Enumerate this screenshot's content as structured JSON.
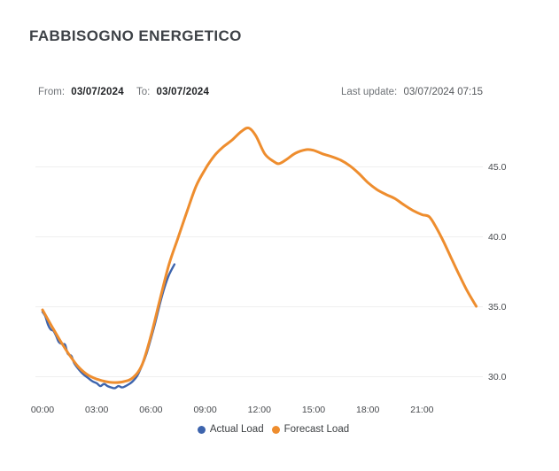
{
  "title": "FABBISOGNO ENERGETICO",
  "header": {
    "from_label": "From:",
    "from_value": "03/07/2024",
    "to_label": "To:",
    "to_value": "03/07/2024",
    "last_update_label": "Last update:",
    "last_update_value": "03/07/2024 07:15"
  },
  "colors": {
    "grid_line": "#efefef",
    "title_text": "#3e4247",
    "muted_text": "#6e7276",
    "value_text": "#222427",
    "axis_text": "#46494d"
  },
  "chart_data": {
    "type": "line",
    "title": "FABBISOGNO ENERGETICO",
    "xlabel": "",
    "ylabel": "",
    "x_axis": {
      "unit": "time of day (hours)",
      "tick_hours": [
        0,
        3,
        6,
        9,
        12,
        15,
        18,
        21
      ],
      "tick_labels": [
        "00:00",
        "03:00",
        "06:00",
        "09:00",
        "12:00",
        "15:00",
        "18:00",
        "21:00"
      ],
      "range_hours": [
        0,
        24
      ]
    },
    "y_axis": {
      "side": "right",
      "tick_values": [
        45.0,
        40.0,
        35.0,
        30.0
      ],
      "tick_labels": [
        "45.0",
        "40.0",
        "35.0",
        "30.0"
      ],
      "ylim": [
        28.7,
        48.4
      ],
      "grid": true
    },
    "legend_position": "bottom-center",
    "series": [
      {
        "name": "Actual Load",
        "color": "#3d64ad",
        "points": [
          [
            0.0,
            34.6
          ],
          [
            0.15,
            34.3
          ],
          [
            0.3,
            33.7
          ],
          [
            0.45,
            33.35
          ],
          [
            0.6,
            33.25
          ],
          [
            0.75,
            32.9
          ],
          [
            0.9,
            32.45
          ],
          [
            1.1,
            32.3
          ],
          [
            1.25,
            32.25
          ],
          [
            1.4,
            31.6
          ],
          [
            1.6,
            31.45
          ],
          [
            1.75,
            30.95
          ],
          [
            2.0,
            30.5
          ],
          [
            2.25,
            30.15
          ],
          [
            2.5,
            29.9
          ],
          [
            2.75,
            29.65
          ],
          [
            3.0,
            29.5
          ],
          [
            3.2,
            29.3
          ],
          [
            3.4,
            29.45
          ],
          [
            3.6,
            29.3
          ],
          [
            3.8,
            29.2
          ],
          [
            4.0,
            29.15
          ],
          [
            4.2,
            29.3
          ],
          [
            4.4,
            29.2
          ],
          [
            4.6,
            29.3
          ],
          [
            4.8,
            29.45
          ],
          [
            5.0,
            29.65
          ],
          [
            5.25,
            30.05
          ],
          [
            5.5,
            30.75
          ],
          [
            5.75,
            31.6
          ],
          [
            6.0,
            32.7
          ],
          [
            6.25,
            33.9
          ],
          [
            6.5,
            35.2
          ],
          [
            6.75,
            36.35
          ],
          [
            7.0,
            37.25
          ],
          [
            7.3,
            38.0
          ]
        ]
      },
      {
        "name": "Forecast Load",
        "color": "#ee8d2e",
        "points": [
          [
            0.0,
            34.75
          ],
          [
            0.5,
            33.6
          ],
          [
            1.0,
            32.5
          ],
          [
            1.5,
            31.5
          ],
          [
            2.0,
            30.65
          ],
          [
            2.5,
            30.1
          ],
          [
            3.0,
            29.8
          ],
          [
            3.5,
            29.62
          ],
          [
            4.0,
            29.55
          ],
          [
            4.5,
            29.62
          ],
          [
            5.0,
            29.9
          ],
          [
            5.5,
            30.8
          ],
          [
            6.0,
            32.9
          ],
          [
            6.5,
            35.5
          ],
          [
            7.0,
            38.0
          ],
          [
            7.5,
            39.9
          ],
          [
            8.0,
            41.8
          ],
          [
            8.5,
            43.6
          ],
          [
            9.0,
            44.8
          ],
          [
            9.3,
            45.4
          ],
          [
            9.6,
            45.9
          ],
          [
            10.0,
            46.4
          ],
          [
            10.5,
            46.9
          ],
          [
            11.0,
            47.5
          ],
          [
            11.4,
            47.75
          ],
          [
            11.8,
            47.2
          ],
          [
            12.3,
            45.9
          ],
          [
            12.8,
            45.35
          ],
          [
            13.1,
            45.2
          ],
          [
            13.5,
            45.5
          ],
          [
            14.0,
            45.95
          ],
          [
            14.6,
            46.2
          ],
          [
            15.0,
            46.15
          ],
          [
            15.5,
            45.9
          ],
          [
            16.0,
            45.7
          ],
          [
            16.5,
            45.45
          ],
          [
            17.0,
            45.05
          ],
          [
            17.5,
            44.5
          ],
          [
            18.0,
            43.85
          ],
          [
            18.5,
            43.35
          ],
          [
            19.0,
            43.0
          ],
          [
            19.5,
            42.7
          ],
          [
            20.0,
            42.25
          ],
          [
            20.5,
            41.85
          ],
          [
            21.0,
            41.55
          ],
          [
            21.4,
            41.4
          ],
          [
            21.8,
            40.6
          ],
          [
            22.2,
            39.6
          ],
          [
            22.6,
            38.5
          ],
          [
            23.0,
            37.4
          ],
          [
            23.5,
            36.1
          ],
          [
            24.0,
            35.0
          ]
        ]
      }
    ]
  }
}
